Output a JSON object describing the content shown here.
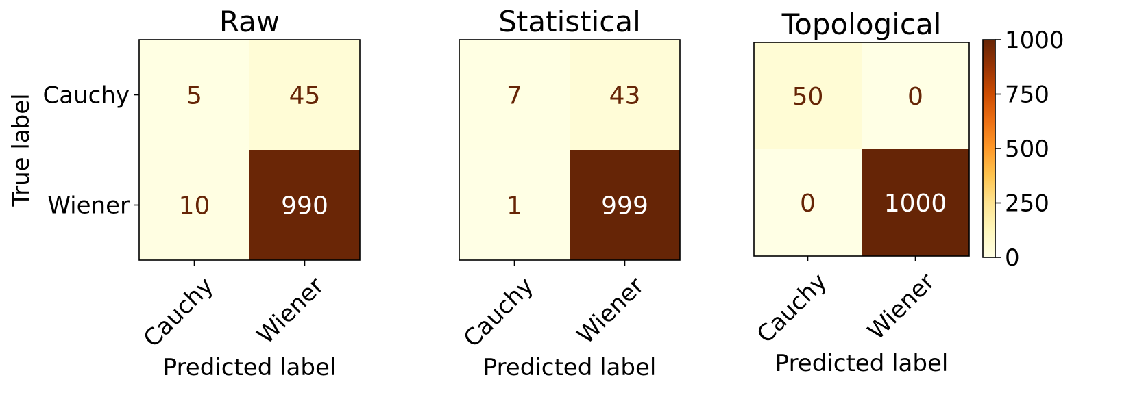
{
  "chart_data": {
    "type": "heatmap",
    "colormap": "YlOrBr",
    "color_range": [
      0,
      1000
    ],
    "panels": [
      {
        "title": "Raw",
        "xlabel": "Predicted label",
        "ylabel": "True label",
        "x_ticks": [
          "Cauchy",
          "Wiener"
        ],
        "y_ticks": [
          "Cauchy",
          "Wiener"
        ],
        "matrix": [
          [
            5,
            45
          ],
          [
            10,
            990
          ]
        ]
      },
      {
        "title": "Statistical",
        "xlabel": "Predicted label",
        "ylabel": "",
        "x_ticks": [
          "Cauchy",
          "Wiener"
        ],
        "y_ticks": [],
        "matrix": [
          [
            7,
            43
          ],
          [
            1,
            999
          ]
        ]
      },
      {
        "title": "Topological",
        "xlabel": "Predicted label",
        "ylabel": "",
        "x_ticks": [
          "Cauchy",
          "Wiener"
        ],
        "y_ticks": [],
        "matrix": [
          [
            50,
            0
          ],
          [
            0,
            1000
          ]
        ]
      }
    ],
    "colorbar": {
      "ticks": [
        0,
        250,
        500,
        750,
        1000
      ],
      "tick_labels": [
        "0",
        "250",
        "500",
        "750",
        "1000"
      ]
    }
  }
}
